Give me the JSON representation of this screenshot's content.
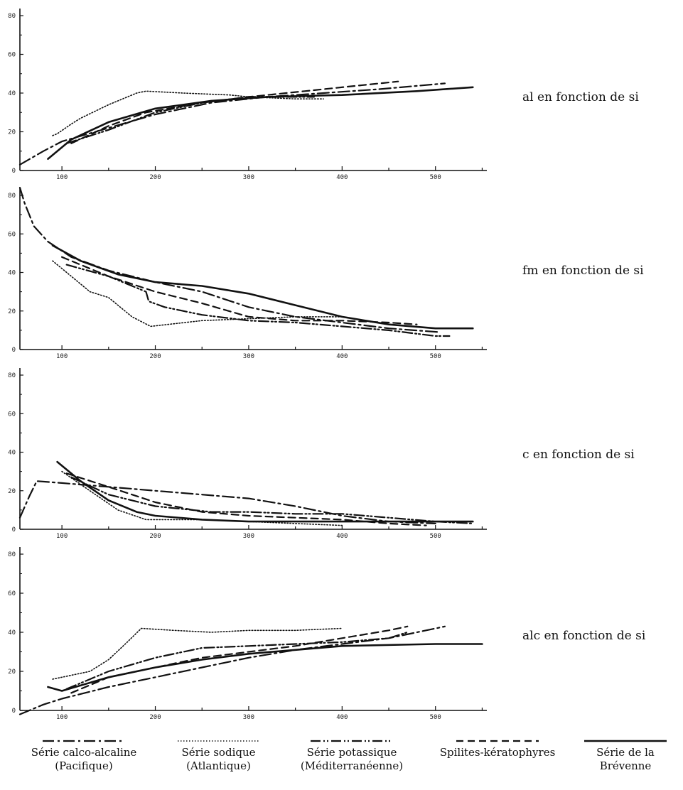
{
  "chart_data": [
    {
      "type": "line",
      "caption": "al en fonction de si",
      "xlabel": "",
      "ylabel": "",
      "xlim": [
        55,
        555
      ],
      "ylim": [
        0,
        80
      ],
      "x_ticks": [
        100,
        200,
        300,
        400,
        500
      ],
      "y_ticks": [
        0,
        20,
        40,
        60,
        80
      ],
      "series": [
        {
          "name": "Série calco-alcaline (Pacifique)",
          "style": "dashdot",
          "points": [
            [
              55,
              3
            ],
            [
              80,
              10
            ],
            [
              100,
              15
            ],
            [
              150,
              22
            ],
            [
              200,
              29
            ],
            [
              260,
              35
            ],
            [
              320,
              38
            ],
            [
              380,
              40
            ],
            [
              440,
              42
            ],
            [
              510,
              45
            ]
          ]
        },
        {
          "name": "Série sodique (Atlantique)",
          "style": "dotted",
          "points": [
            [
              90,
              18
            ],
            [
              95,
              19
            ],
            [
              110,
              24
            ],
            [
              120,
              27
            ],
            [
              150,
              34
            ],
            [
              180,
              40
            ],
            [
              190,
              41
            ],
            [
              230,
              40
            ],
            [
              280,
              39
            ],
            [
              300,
              38
            ],
            [
              350,
              37
            ],
            [
              380,
              37
            ]
          ]
        },
        {
          "name": "Série potassique (Méditerranéenne)",
          "style": "dashdotdot",
          "points": [
            [
              105,
              14
            ],
            [
              150,
              21
            ],
            [
              200,
              30
            ],
            [
              250,
              35
            ],
            [
              300,
              38
            ],
            [
              350,
              38
            ],
            [
              370,
              38
            ]
          ]
        },
        {
          "name": "Spilites-kératophyres",
          "style": "dashed",
          "points": [
            [
              110,
              14
            ],
            [
              150,
              23
            ],
            [
              190,
              30
            ],
            [
              250,
              35
            ],
            [
              300,
              38
            ],
            [
              360,
              41
            ],
            [
              420,
              44
            ],
            [
              460,
              46
            ]
          ]
        },
        {
          "name": "Série de la Brévenne",
          "style": "solid",
          "points": [
            [
              85,
              6
            ],
            [
              110,
              16
            ],
            [
              150,
              25
            ],
            [
              200,
              32
            ],
            [
              260,
              36
            ],
            [
              320,
              38
            ],
            [
              400,
              39
            ],
            [
              480,
              41
            ],
            [
              540,
              43
            ]
          ]
        }
      ]
    },
    {
      "type": "line",
      "caption": "fm en fonction de si",
      "xlabel": "",
      "ylabel": "",
      "xlim": [
        55,
        555
      ],
      "ylim": [
        0,
        80
      ],
      "x_ticks": [
        100,
        200,
        300,
        400,
        500
      ],
      "y_ticks": [
        0,
        20,
        40,
        60,
        80
      ],
      "series": [
        {
          "name": "Série calco-alcaline (Pacifique)",
          "style": "dashdot",
          "points": [
            [
              55,
              84
            ],
            [
              60,
              76
            ],
            [
              70,
              64
            ],
            [
              85,
              56
            ],
            [
              110,
              48
            ],
            [
              150,
              41
            ],
            [
              200,
              35
            ],
            [
              250,
              30
            ],
            [
              300,
              22
            ],
            [
              350,
              17
            ],
            [
              400,
              14
            ],
            [
              450,
              11
            ],
            [
              505,
              9
            ]
          ]
        },
        {
          "name": "Série sodique (Atlantique)",
          "style": "dotted",
          "points": [
            [
              90,
              46
            ],
            [
              110,
              38
            ],
            [
              130,
              30
            ],
            [
              150,
              27
            ],
            [
              175,
              17
            ],
            [
              195,
              12
            ],
            [
              250,
              15
            ],
            [
              300,
              16
            ],
            [
              350,
              17
            ],
            [
              400,
              17
            ]
          ]
        },
        {
          "name": "Série potassique (Méditerranéenne)",
          "style": "dashdotdot",
          "points": [
            [
              105,
              44
            ],
            [
              150,
              38
            ],
            [
              190,
              30
            ],
            [
              193,
              25
            ],
            [
              210,
              22
            ],
            [
              250,
              18
            ],
            [
              300,
              15
            ],
            [
              350,
              14
            ],
            [
              400,
              12
            ],
            [
              450,
              10
            ],
            [
              500,
              7
            ],
            [
              515,
              7
            ]
          ]
        },
        {
          "name": "Spilites-kératophyres",
          "style": "dashed",
          "points": [
            [
              100,
              48
            ],
            [
              150,
              38
            ],
            [
              200,
              30
            ],
            [
              250,
              24
            ],
            [
              300,
              17
            ],
            [
              350,
              15
            ],
            [
              400,
              15
            ],
            [
              450,
              14
            ],
            [
              480,
              13
            ]
          ]
        },
        {
          "name": "Série de la Brévenne",
          "style": "solid",
          "points": [
            [
              90,
              54
            ],
            [
              120,
              46
            ],
            [
              160,
              39
            ],
            [
              200,
              35
            ],
            [
              250,
              33
            ],
            [
              300,
              29
            ],
            [
              350,
              23
            ],
            [
              400,
              17
            ],
            [
              450,
              13
            ],
            [
              500,
              11
            ],
            [
              540,
              11
            ]
          ]
        }
      ]
    },
    {
      "type": "line",
      "caption": "c  en  fonction de si",
      "xlabel": "",
      "ylabel": "",
      "xlim": [
        55,
        555
      ],
      "ylim": [
        0,
        80
      ],
      "x_ticks": [
        100,
        200,
        300,
        400,
        500
      ],
      "y_ticks": [
        0,
        20,
        40,
        60,
        80
      ],
      "series": [
        {
          "name": "Série calco-alcaline (Pacifique)",
          "style": "dashdot",
          "points": [
            [
              55,
              6
            ],
            [
              65,
              17
            ],
            [
              73,
              25
            ],
            [
              100,
              24
            ],
            [
              150,
              22
            ],
            [
              200,
              20
            ],
            [
              250,
              18
            ],
            [
              300,
              16
            ],
            [
              350,
              12
            ],
            [
              400,
              7
            ],
            [
              450,
              4
            ],
            [
              500,
              3
            ]
          ]
        },
        {
          "name": "Série sodique (Atlantique)",
          "style": "dotted",
          "points": [
            [
              100,
              30
            ],
            [
              130,
              20
            ],
            [
              160,
              10
            ],
            [
              190,
              5
            ],
            [
              250,
              5
            ],
            [
              300,
              4
            ],
            [
              350,
              3
            ],
            [
              400,
              2
            ]
          ]
        },
        {
          "name": "Série potassique (Méditerranéenne)",
          "style": "dashdotdot",
          "points": [
            [
              110,
              27
            ],
            [
              150,
              18
            ],
            [
              200,
              12
            ],
            [
              260,
              9
            ],
            [
              300,
              9
            ],
            [
              350,
              8
            ],
            [
              400,
              8
            ],
            [
              450,
              6
            ],
            [
              500,
              4
            ],
            [
              540,
              3
            ]
          ]
        },
        {
          "name": "Spilites-kératophyres",
          "style": "dashed",
          "points": [
            [
              105,
              29
            ],
            [
              150,
              22
            ],
            [
              200,
              14
            ],
            [
              250,
              9
            ],
            [
              300,
              7
            ],
            [
              350,
              6
            ],
            [
              400,
              5
            ],
            [
              450,
              3
            ],
            [
              490,
              2
            ]
          ]
        },
        {
          "name": "Série de la Brévenne",
          "style": "solid",
          "points": [
            [
              95,
              35
            ],
            [
              120,
              25
            ],
            [
              150,
              15
            ],
            [
              180,
              9
            ],
            [
              200,
              7
            ],
            [
              250,
              5
            ],
            [
              300,
              4
            ],
            [
              400,
              4
            ],
            [
              450,
              4
            ],
            [
              500,
              4
            ],
            [
              540,
              4
            ]
          ]
        }
      ]
    },
    {
      "type": "line",
      "caption": "alc en fonction de si",
      "xlabel": "",
      "ylabel": "",
      "xlim": [
        55,
        555
      ],
      "ylim": [
        0,
        80
      ],
      "x_ticks": [
        100,
        200,
        300,
        400,
        500
      ],
      "y_ticks": [
        0,
        20,
        40,
        60,
        80
      ],
      "series": [
        {
          "name": "Série calco-alcaline (Pacifique)",
          "style": "dashdot",
          "points": [
            [
              55,
              -2
            ],
            [
              80,
              3
            ],
            [
              100,
              6
            ],
            [
              150,
              12
            ],
            [
              200,
              17
            ],
            [
              250,
              22
            ],
            [
              300,
              27
            ],
            [
              350,
              31
            ],
            [
              400,
              34
            ],
            [
              450,
              37
            ],
            [
              510,
              43
            ]
          ]
        },
        {
          "name": "Série sodique (Atlantique)",
          "style": "dotted",
          "points": [
            [
              90,
              16
            ],
            [
              110,
              18
            ],
            [
              130,
              20
            ],
            [
              150,
              26
            ],
            [
              170,
              35
            ],
            [
              185,
              42
            ],
            [
              220,
              41
            ],
            [
              260,
              40
            ],
            [
              300,
              41
            ],
            [
              350,
              41
            ],
            [
              400,
              42
            ]
          ]
        },
        {
          "name": "Série potassique (Méditerranéenne)",
          "style": "dashdotdot",
          "points": [
            [
              105,
              11
            ],
            [
              150,
              20
            ],
            [
              200,
              27
            ],
            [
              250,
              32
            ],
            [
              300,
              33
            ],
            [
              350,
              34
            ],
            [
              400,
              35
            ],
            [
              450,
              37
            ],
            [
              470,
              40
            ]
          ]
        },
        {
          "name": "Spilites-kératophyres",
          "style": "dashed",
          "points": [
            [
              110,
              9
            ],
            [
              150,
              17
            ],
            [
              200,
              22
            ],
            [
              250,
              27
            ],
            [
              300,
              30
            ],
            [
              350,
              33
            ],
            [
              400,
              37
            ],
            [
              450,
              41
            ],
            [
              470,
              43
            ]
          ]
        },
        {
          "name": "Série de la Brévenne",
          "style": "solid",
          "points": [
            [
              85,
              12
            ],
            [
              100,
              10
            ],
            [
              150,
              17
            ],
            [
              200,
              22
            ],
            [
              250,
              26
            ],
            [
              300,
              29
            ],
            [
              350,
              31
            ],
            [
              400,
              33
            ],
            [
              500,
              34
            ],
            [
              550,
              34
            ]
          ]
        }
      ]
    }
  ],
  "legend": [
    {
      "label": "Série calco-alcaline",
      "sub": "(Pacifique)",
      "style": "dashdot"
    },
    {
      "label": "Série sodique",
      "sub": "(Atlantique)",
      "style": "dotted"
    },
    {
      "label": "Série potassique",
      "sub": "(Méditerranéenne)",
      "style": "dashdotdot"
    },
    {
      "label": "Spilites-kératophyres",
      "sub": "",
      "style": "dashed"
    },
    {
      "label": "Série de la",
      "sub": "Brévenne",
      "style": "solid"
    }
  ]
}
